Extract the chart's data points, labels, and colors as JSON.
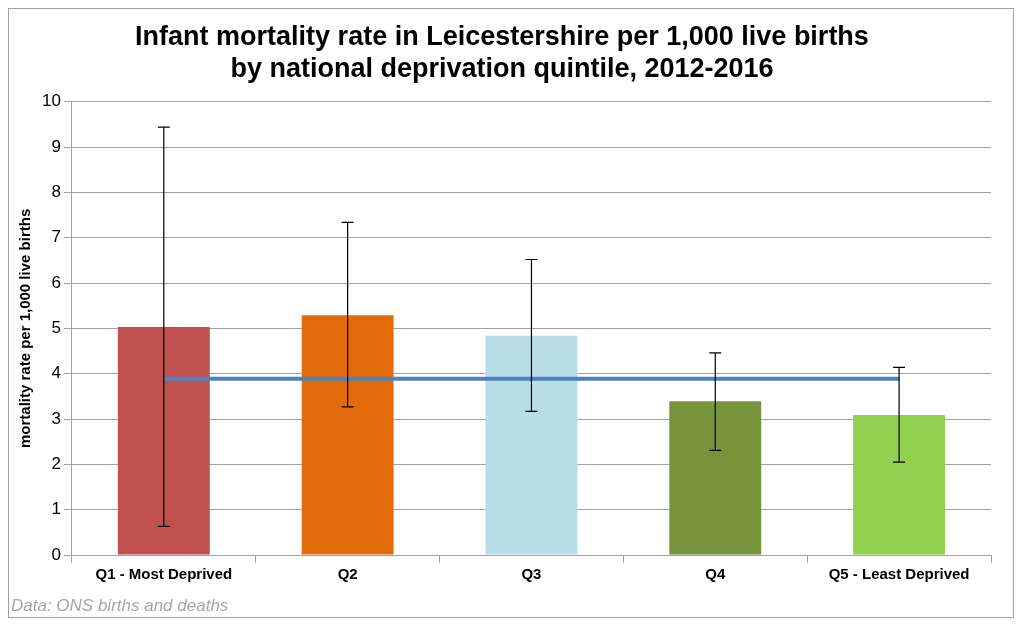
{
  "chart_data": {
    "type": "bar",
    "title": "Infant mortality rate in Leicestershire per 1,000 live births by national deprivation quintile, 2012-2016",
    "ylabel": "mortality rate per 1,000 live births",
    "categories": [
      "Q1 - Most Deprived",
      "Q2",
      "Q3",
      "Q4",
      "Q5 - Least Deprived"
    ],
    "series": [
      {
        "colors": [
          "#c0504d",
          "#e36c0a",
          "#b7dde8",
          "#77933c",
          "#92d050"
        ],
        "values": [
          5.03,
          5.29,
          4.84,
          3.39,
          3.09
        ],
        "errors": [
          [
            0.63,
            9.44
          ],
          [
            3.27,
            7.34
          ],
          [
            3.17,
            6.52
          ],
          [
            2.31,
            4.46
          ],
          [
            2.05,
            4.14
          ]
        ]
      },
      {
        "type": "line",
        "color": "#4f81bd",
        "values": [
          3.89,
          3.89,
          3.89,
          3.89,
          3.89
        ],
        "marker": "none"
      }
    ],
    "ylim": [
      0,
      10
    ],
    "yticks": [
      0,
      1,
      2,
      3,
      4,
      5,
      6,
      7,
      8,
      9,
      10
    ],
    "grid": "y",
    "legend": false,
    "annotations": [
      "Data: ONS births and deaths"
    ]
  }
}
